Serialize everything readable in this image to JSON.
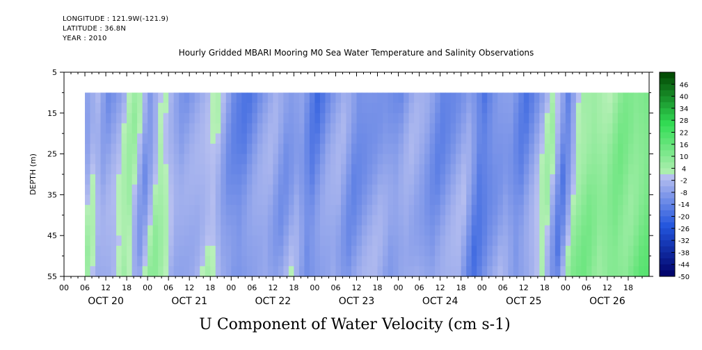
{
  "header": {
    "longitude": "LONGITUDE : 121.9W(-121.9)",
    "latitude": "LATITUDE : 36.8N",
    "year": "YEAR : 2010"
  },
  "chart_data": {
    "type": "heatmap",
    "title": "Hourly Gridded MBARI Mooring M0 Sea Water Temperature and Salinity Observations",
    "xlabel": "U Component of Water Velocity (cm s-1)",
    "ylabel": "DEPTH (m)",
    "y_ticks": [
      5,
      15,
      25,
      35,
      45,
      55
    ],
    "ylim": [
      55,
      5
    ],
    "data_depth_range": [
      10,
      55
    ],
    "x_hour_ticks": [
      "00",
      "06",
      "12",
      "18",
      "00",
      "06",
      "12",
      "18",
      "00",
      "06",
      "12",
      "18",
      "00",
      "06",
      "12",
      "18",
      "00",
      "06",
      "12",
      "18",
      "00",
      "06",
      "12",
      "18",
      "00",
      "06",
      "12",
      "18"
    ],
    "x_day_labels": [
      "OCT 20",
      "OCT 21",
      "OCT 22",
      "OCT 23",
      "OCT 24",
      "OCT 25",
      "OCT 26"
    ],
    "data_start_hour": 6,
    "colorbar_labels": [
      46,
      40,
      34,
      28,
      22,
      16,
      10,
      4,
      -2,
      -8,
      -14,
      -20,
      -26,
      -32,
      -38,
      -44,
      -50
    ],
    "colorbar_range": [
      -50,
      52
    ],
    "colors": {
      "negative_low": "#000066",
      "negative_mid": "#2255dd",
      "negative_high": "#b8c0f0",
      "positive_low": "#b8f0b8",
      "positive_mid": "#33dd55",
      "positive_high": "#004400"
    },
    "velocity_profile": [
      {
        "day_hour": 6,
        "u": -6
      },
      {
        "day_hour": 9,
        "u": 2
      },
      {
        "day_hour": 12,
        "u": -8
      },
      {
        "day_hour": 16,
        "u": -4
      },
      {
        "day_hour": 20,
        "u": 6
      },
      {
        "day_hour": 24,
        "u": -10
      },
      {
        "day_hour": 28,
        "u": 6
      },
      {
        "day_hour": 34,
        "u": -8
      },
      {
        "day_hour": 40,
        "u": -4
      },
      {
        "day_hour": 44,
        "u": 2
      },
      {
        "day_hour": 48,
        "u": -10
      },
      {
        "day_hour": 52,
        "u": -14
      },
      {
        "day_hour": 56,
        "u": -8
      },
      {
        "day_hour": 60,
        "u": -4
      },
      {
        "day_hour": 64,
        "u": -10
      },
      {
        "day_hour": 68,
        "u": -4
      },
      {
        "day_hour": 72,
        "u": -16
      },
      {
        "day_hour": 76,
        "u": -8
      },
      {
        "day_hour": 80,
        "u": -4
      },
      {
        "day_hour": 84,
        "u": -12
      },
      {
        "day_hour": 88,
        "u": -8
      },
      {
        "day_hour": 92,
        "u": -6
      },
      {
        "day_hour": 96,
        "u": -10
      },
      {
        "day_hour": 100,
        "u": -4
      },
      {
        "day_hour": 104,
        "u": -6
      },
      {
        "day_hour": 108,
        "u": -12
      },
      {
        "day_hour": 112,
        "u": -8
      },
      {
        "day_hour": 116,
        "u": -4
      },
      {
        "day_hour": 120,
        "u": -18
      },
      {
        "day_hour": 124,
        "u": -10
      },
      {
        "day_hour": 128,
        "u": -6
      },
      {
        "day_hour": 132,
        "u": -14
      },
      {
        "day_hour": 136,
        "u": -6
      },
      {
        "day_hour": 140,
        "u": 4
      },
      {
        "day_hour": 144,
        "u": -16
      },
      {
        "day_hour": 148,
        "u": 6
      },
      {
        "day_hour": 152,
        "u": 10
      },
      {
        "day_hour": 156,
        "u": 4
      },
      {
        "day_hour": 160,
        "u": 12
      },
      {
        "day_hour": 164,
        "u": 8
      },
      {
        "day_hour": 168,
        "u": 14
      }
    ]
  }
}
